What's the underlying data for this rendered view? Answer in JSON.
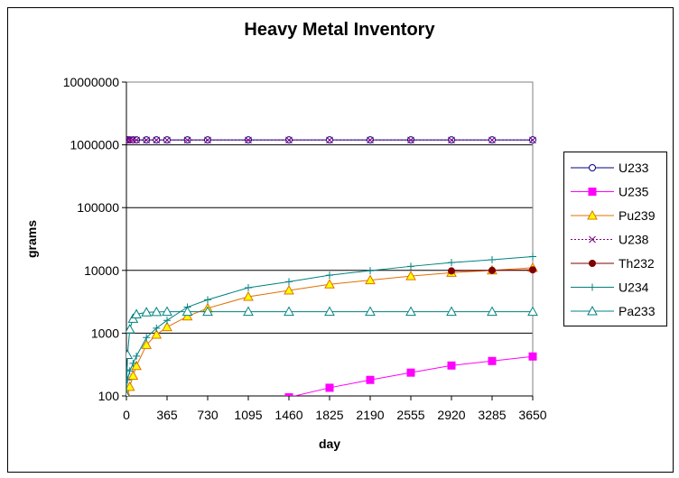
{
  "chart_data": {
    "type": "line",
    "title": "Heavy Metal Inventory",
    "xlabel": "day",
    "ylabel": "grams",
    "y_scale": "log",
    "ylim": [
      100,
      10000000
    ],
    "xlim": [
      0,
      3650
    ],
    "x_ticks": [
      0,
      365,
      730,
      1095,
      1460,
      1825,
      2190,
      2555,
      2920,
      3285,
      3650
    ],
    "y_ticks": [
      100,
      1000,
      10000,
      100000,
      1000000,
      10000000
    ],
    "y_tick_labels": [
      "100",
      "1000",
      "10000",
      "100000",
      "1000000",
      "10000000"
    ],
    "grid": "horizontal",
    "legend_position": "right",
    "series": [
      {
        "name": "U233",
        "color": "#000080",
        "marker": "circle-open",
        "dash": "solid",
        "x": [
          0,
          10,
          30,
          60,
          90,
          180,
          270,
          365,
          548,
          730,
          1095,
          1460,
          1825,
          2190,
          2555,
          2920,
          3285,
          3650
        ],
        "y": [
          1200000,
          1200000,
          1200000,
          1200000,
          1200000,
          1200000,
          1200000,
          1200000,
          1200000,
          1200000,
          1200000,
          1200000,
          1200000,
          1200000,
          1200000,
          1200000,
          1200000,
          1200000
        ]
      },
      {
        "name": "U235",
        "color": "#ff00ff",
        "marker": "square-filled",
        "dash": "solid",
        "x": [
          1460,
          1825,
          2190,
          2555,
          2920,
          3285,
          3650
        ],
        "y": [
          95,
          135,
          180,
          235,
          305,
          360,
          425
        ]
      },
      {
        "name": "Pu239",
        "color": "#e07000",
        "marker": "triangle-yellow",
        "dash": "solid",
        "x": [
          0,
          10,
          30,
          60,
          90,
          180,
          270,
          365,
          548,
          730,
          1095,
          1460,
          1825,
          2190,
          2555,
          2920,
          3285,
          3650
        ],
        "y": [
          100,
          100,
          140,
          210,
          300,
          650,
          950,
          1250,
          1850,
          2500,
          3800,
          4800,
          6000,
          7000,
          8100,
          9200,
          10000,
          11000
        ]
      },
      {
        "name": "U238",
        "color": "#800080",
        "marker": "x",
        "dash": "dotted",
        "x": [
          0,
          10,
          30,
          60,
          90,
          180,
          270,
          365,
          548,
          730,
          1095,
          1460,
          1825,
          2190,
          2555,
          2920,
          3285,
          3650
        ],
        "y": [
          1190000,
          1190000,
          1190000,
          1190000,
          1190000,
          1190000,
          1190000,
          1190000,
          1190000,
          1190000,
          1190000,
          1190000,
          1190000,
          1190000,
          1190000,
          1190000,
          1190000,
          1190000
        ]
      },
      {
        "name": "Th232",
        "color": "#800000",
        "marker": "circle-filled",
        "dash": "solid",
        "x": [
          2920,
          3285,
          3650
        ],
        "y": [
          9800,
          10000,
          10200
        ]
      },
      {
        "name": "U234",
        "color": "#008080",
        "marker": "plus",
        "dash": "solid",
        "x": [
          0,
          10,
          30,
          60,
          90,
          180,
          270,
          365,
          548,
          730,
          1095,
          1460,
          1825,
          2190,
          2555,
          2920,
          3285,
          3650
        ],
        "y": [
          260,
          180,
          250,
          330,
          430,
          850,
          1200,
          1600,
          2600,
          3400,
          5300,
          6600,
          8400,
          9900,
          11600,
          13300,
          14800,
          16600
        ]
      },
      {
        "name": "Pa233",
        "color": "#008080",
        "marker": "triangle-open",
        "dash": "solid",
        "x": [
          0,
          10,
          30,
          60,
          90,
          180,
          270,
          365,
          548,
          730,
          1095,
          1460,
          1825,
          2190,
          2555,
          2920,
          3285,
          3650
        ],
        "y": [
          100,
          450,
          1150,
          1700,
          2000,
          2150,
          2180,
          2200,
          2200,
          2200,
          2200,
          2200,
          2200,
          2200,
          2200,
          2200,
          2200,
          2200
        ]
      }
    ]
  }
}
